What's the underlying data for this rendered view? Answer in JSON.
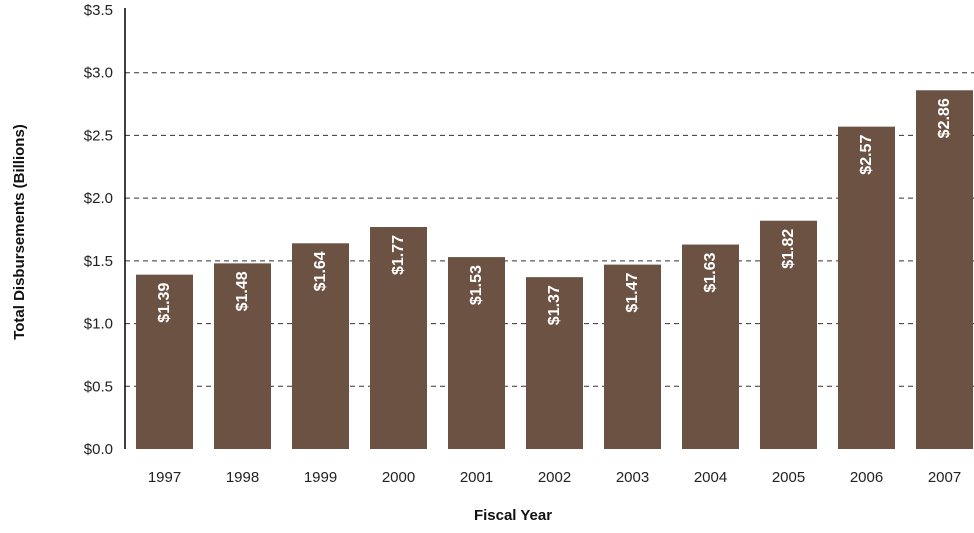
{
  "chart_data": {
    "type": "bar",
    "categories": [
      "1997",
      "1998",
      "1999",
      "2000",
      "2001",
      "2002",
      "2003",
      "2004",
      "2005",
      "2006",
      "2007"
    ],
    "values": [
      1.39,
      1.48,
      1.64,
      1.77,
      1.53,
      1.37,
      1.47,
      1.63,
      1.82,
      2.57,
      2.86
    ],
    "data_labels": [
      "$1.39",
      "$1.48",
      "$1.64",
      "$1.77",
      "$1.53",
      "$1.37",
      "$1.47",
      "$1.63",
      "$1.82",
      "$2.57",
      "$2.86"
    ],
    "xlabel": "Fiscal Year",
    "ylabel": "Total Disbursements (Billions)",
    "ylim": [
      0,
      3.5
    ],
    "yticks": [
      0,
      0.5,
      1.0,
      1.5,
      2.0,
      2.5,
      3.0,
      3.5
    ],
    "ytick_labels": [
      "$0.0",
      "$0.5",
      "$1.0",
      "$1.5",
      "$2.0",
      "$2.5",
      "$3.0",
      "$3.5"
    ],
    "grid": "horizontal-dashed",
    "legend": "none",
    "colors": {
      "bar": "#6b5242",
      "grid": "#333333",
      "axis": "#000000"
    }
  }
}
